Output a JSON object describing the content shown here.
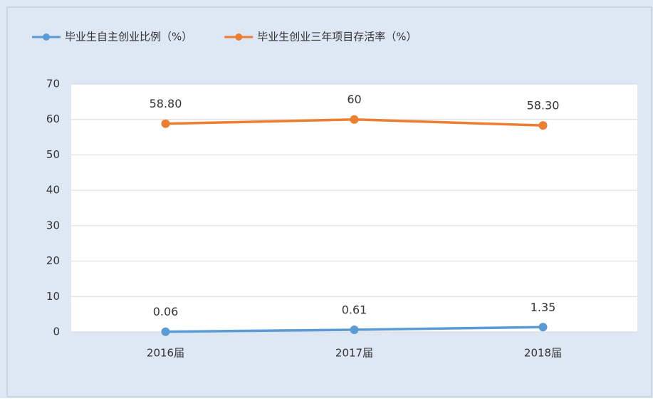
{
  "chart_data": {
    "type": "line",
    "categories": [
      "2016届",
      "2017届",
      "2018届"
    ],
    "series": [
      {
        "name": "毕业生自主创业比例（%）",
        "color": "#5b9bd5",
        "values": [
          0.06,
          0.61,
          1.35
        ]
      },
      {
        "name": "毕业生创业三年项目存活率（%）",
        "color": "#ed7d31",
        "values": [
          58.8,
          60,
          58.3
        ],
        "value_labels": [
          "58.80",
          "60",
          "58.30"
        ]
      }
    ],
    "ylim": [
      0,
      70
    ],
    "yticks": [
      0,
      10,
      20,
      30,
      40,
      50,
      60,
      70
    ],
    "grid": true,
    "legend": "top"
  }
}
